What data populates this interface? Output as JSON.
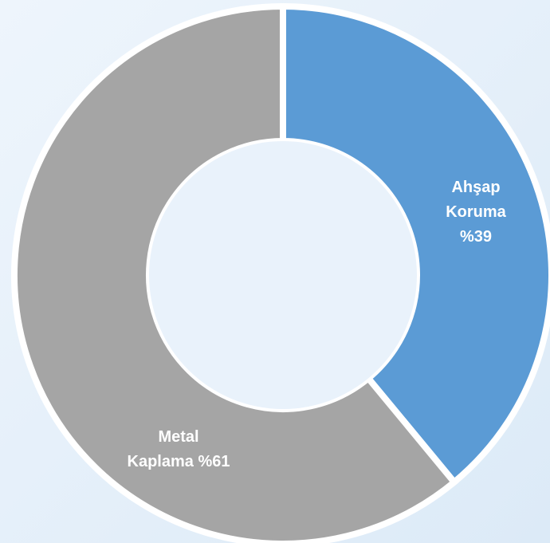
{
  "chart_data": {
    "type": "pie",
    "variant": "donut",
    "title": "",
    "slices": [
      {
        "label_lines": [
          "Ahşap",
          "Koruma",
          "%39"
        ],
        "value": 39,
        "color": "#5b9bd5"
      },
      {
        "label_lines": [
          "Metal",
          "Kaplama %61"
        ],
        "value": 61,
        "color": "#a5a5a5"
      }
    ],
    "background": {
      "top": "#eef5fc",
      "bottom": "#dceaf7"
    },
    "hole_color": "#e9f2fb",
    "separator_color": "#ffffff",
    "legend": "none"
  }
}
